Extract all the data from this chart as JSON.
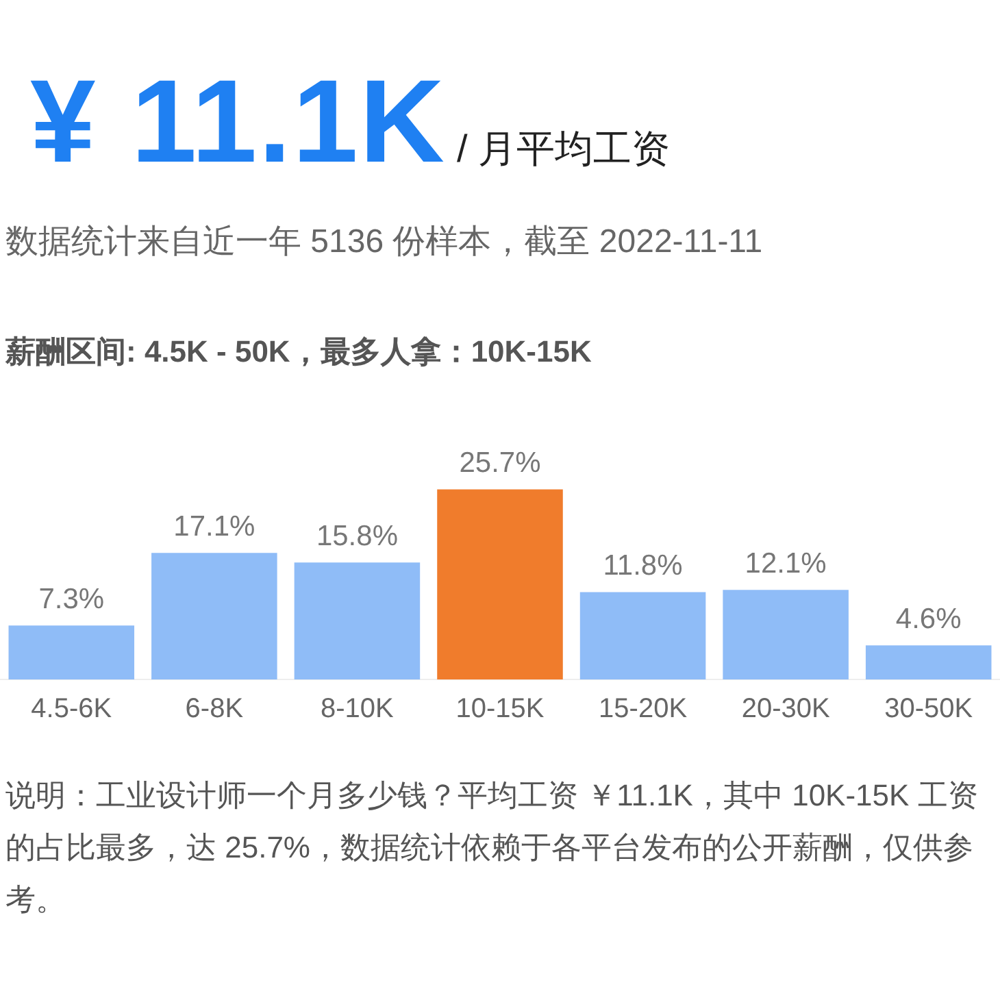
{
  "chart_data": {
    "type": "bar",
    "title": "¥ 11.1K",
    "subtitle": "/ 月平均工资",
    "annotations": [
      "数据统计来自近一年 5136 份样本，截至 2022-11-11",
      "薪酬区间: 4.5K - 50K，最多人拿：10K-15K",
      "说明：工业设计师一个月多少钱？平均工资 ￥11.1K，其中 10K-15K 工资的占比最多，达 25.7%，数据统计依赖于各平台发布的公开薪酬，仅供参考。"
    ],
    "categories": [
      "4.5-6K",
      "6-8K",
      "8-10K",
      "10-15K",
      "15-20K",
      "20-30K",
      "30-50K"
    ],
    "values": [
      7.3,
      17.1,
      15.8,
      25.7,
      11.8,
      12.1,
      4.6
    ],
    "value_labels": [
      "7.3%",
      "17.1%",
      "15.8%",
      "25.7%",
      "11.8%",
      "12.1%",
      "4.6%"
    ],
    "colors": [
      "#8fbcf7",
      "#8fbcf7",
      "#8fbcf7",
      "#f07c2c",
      "#8fbcf7",
      "#8fbcf7",
      "#8fbcf7"
    ],
    "grid": false,
    "legend": false,
    "tick_labels": "x"
  }
}
